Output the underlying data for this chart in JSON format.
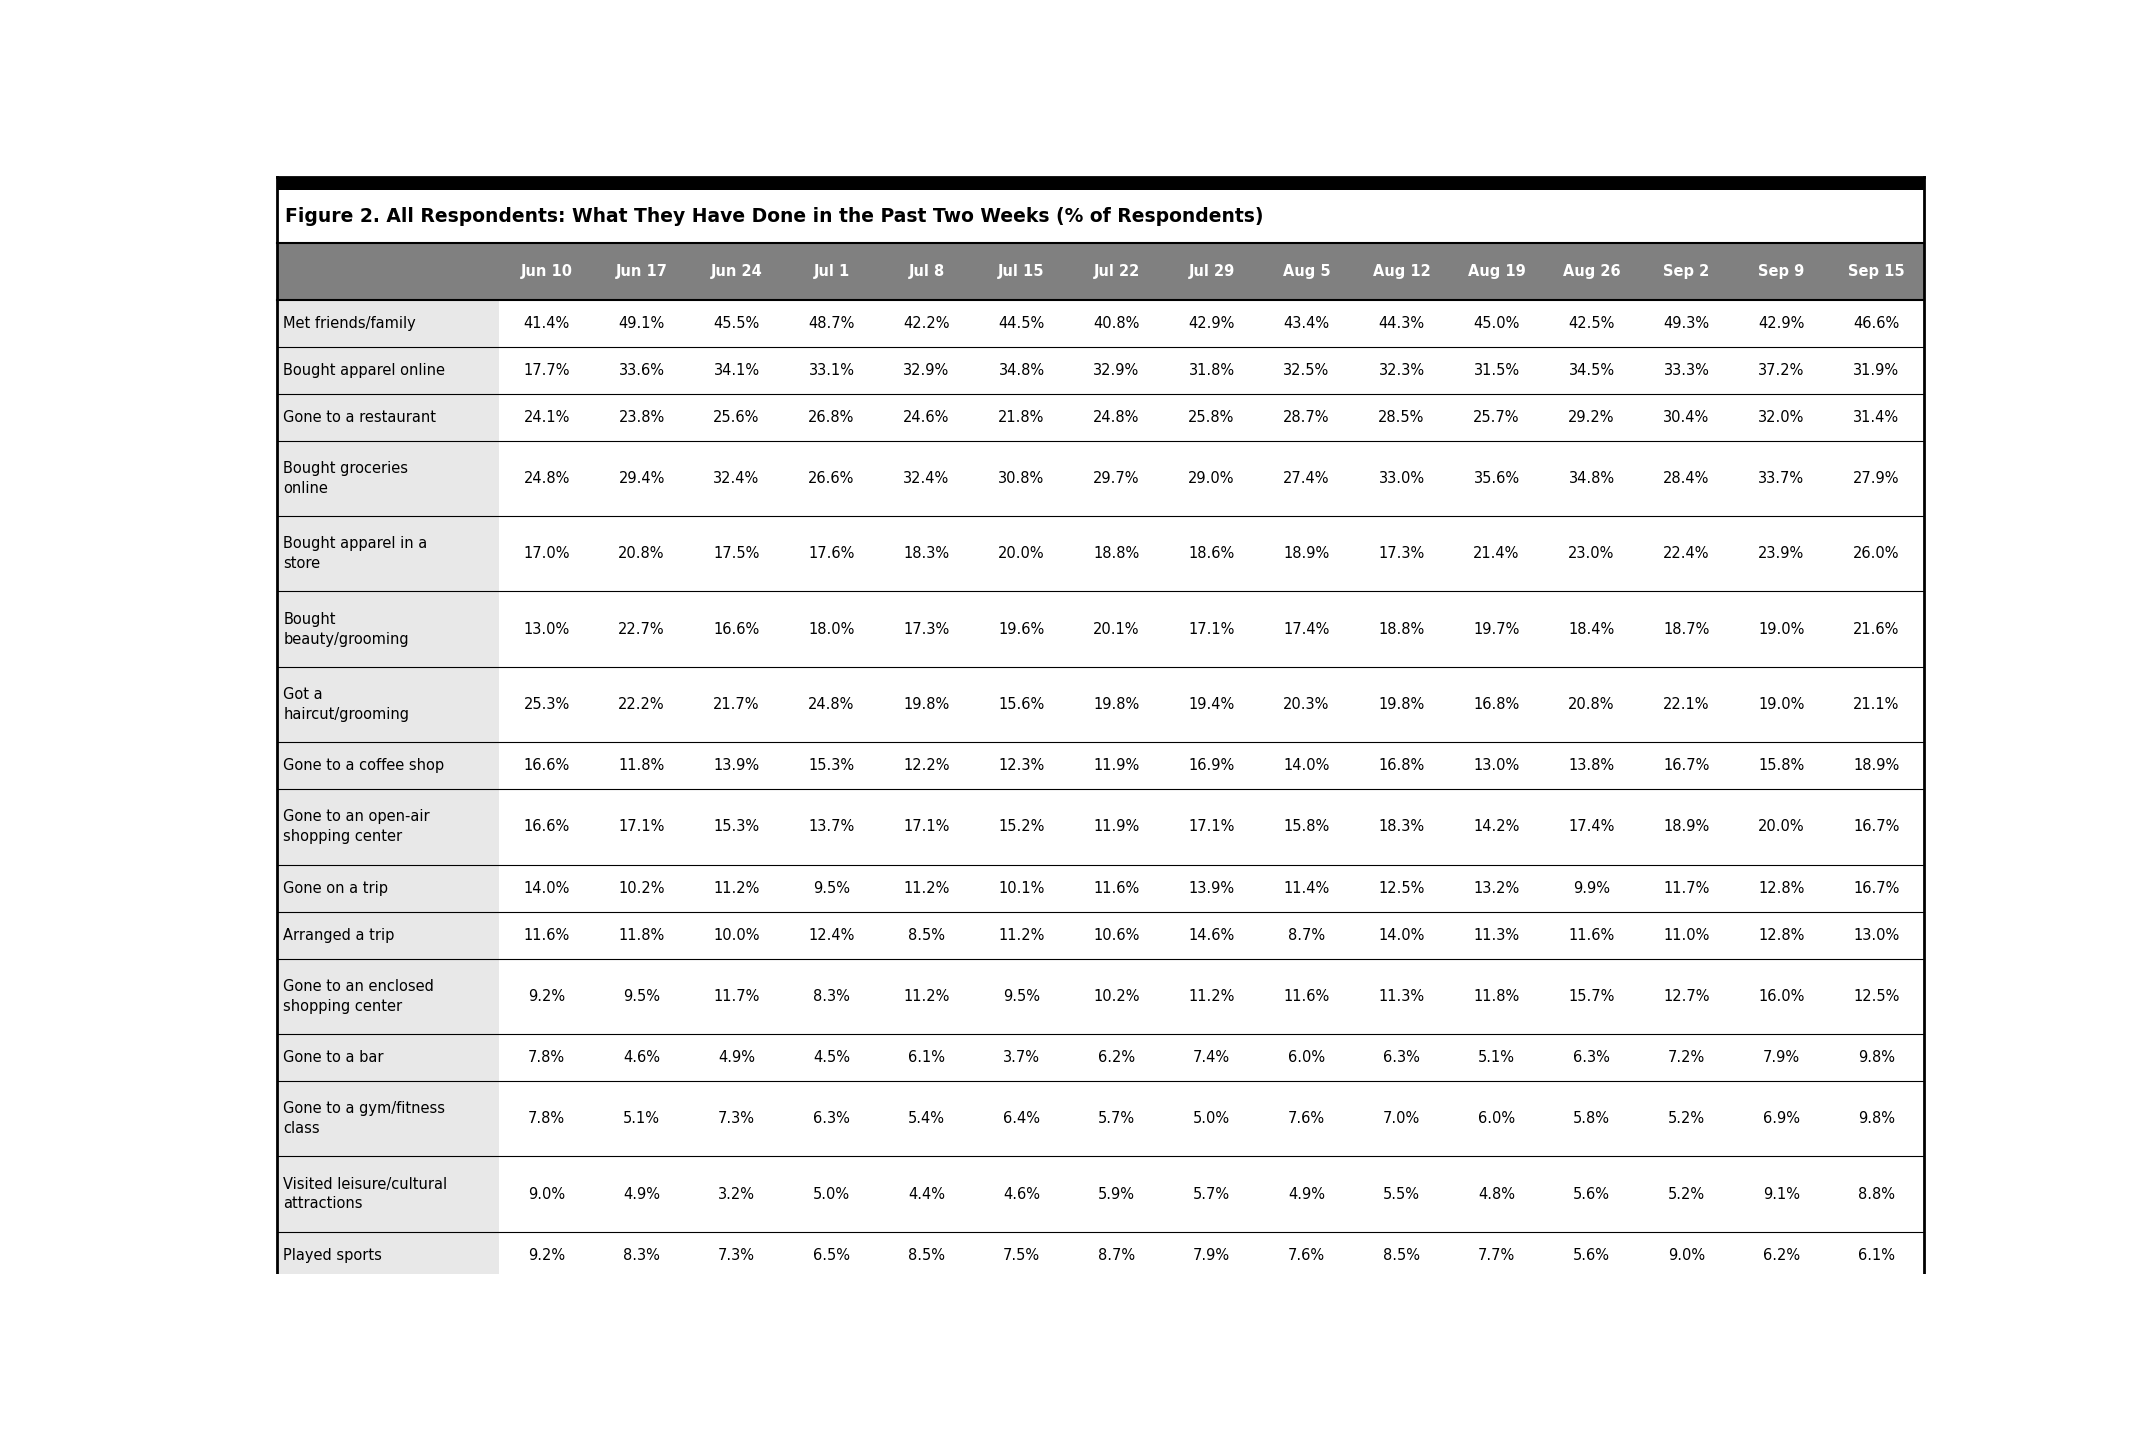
{
  "title": "Figure 2. All Respondents: What They Have Done in the Past Two Weeks (% of Respondents)",
  "columns": [
    "Jun 10",
    "Jun 17",
    "Jun 24",
    "Jul 1",
    "Jul 8",
    "Jul 15",
    "Jul 22",
    "Jul 29",
    "Aug 5",
    "Aug 12",
    "Aug 19",
    "Aug 26",
    "Sep 2",
    "Sep 9",
    "Sep 15"
  ],
  "rows": [
    [
      "Met friends/family",
      "41.4%",
      "49.1%",
      "45.5%",
      "48.7%",
      "42.2%",
      "44.5%",
      "40.8%",
      "42.9%",
      "43.4%",
      "44.3%",
      "45.0%",
      "42.5%",
      "49.3%",
      "42.9%",
      "46.6%"
    ],
    [
      "Bought apparel online",
      "17.7%",
      "33.6%",
      "34.1%",
      "33.1%",
      "32.9%",
      "34.8%",
      "32.9%",
      "31.8%",
      "32.5%",
      "32.3%",
      "31.5%",
      "34.5%",
      "33.3%",
      "37.2%",
      "31.9%"
    ],
    [
      "Gone to a restaurant",
      "24.1%",
      "23.8%",
      "25.6%",
      "26.8%",
      "24.6%",
      "21.8%",
      "24.8%",
      "25.8%",
      "28.7%",
      "28.5%",
      "25.7%",
      "29.2%",
      "30.4%",
      "32.0%",
      "31.4%"
    ],
    [
      "Bought groceries\nonline",
      "24.8%",
      "29.4%",
      "32.4%",
      "26.6%",
      "32.4%",
      "30.8%",
      "29.7%",
      "29.0%",
      "27.4%",
      "33.0%",
      "35.6%",
      "34.8%",
      "28.4%",
      "33.7%",
      "27.9%"
    ],
    [
      "Bought apparel in a\nstore",
      "17.0%",
      "20.8%",
      "17.5%",
      "17.6%",
      "18.3%",
      "20.0%",
      "18.8%",
      "18.6%",
      "18.9%",
      "17.3%",
      "21.4%",
      "23.0%",
      "22.4%",
      "23.9%",
      "26.0%"
    ],
    [
      "Bought\nbeauty/grooming",
      "13.0%",
      "22.7%",
      "16.6%",
      "18.0%",
      "17.3%",
      "19.6%",
      "20.1%",
      "17.1%",
      "17.4%",
      "18.8%",
      "19.7%",
      "18.4%",
      "18.7%",
      "19.0%",
      "21.6%"
    ],
    [
      "Got a\nhaircut/grooming",
      "25.3%",
      "22.2%",
      "21.7%",
      "24.8%",
      "19.8%",
      "15.6%",
      "19.8%",
      "19.4%",
      "20.3%",
      "19.8%",
      "16.8%",
      "20.8%",
      "22.1%",
      "19.0%",
      "21.1%"
    ],
    [
      "Gone to a coffee shop",
      "16.6%",
      "11.8%",
      "13.9%",
      "15.3%",
      "12.2%",
      "12.3%",
      "11.9%",
      "16.9%",
      "14.0%",
      "16.8%",
      "13.0%",
      "13.8%",
      "16.7%",
      "15.8%",
      "18.9%"
    ],
    [
      "Gone to an open-air\nshopping center",
      "16.6%",
      "17.1%",
      "15.3%",
      "13.7%",
      "17.1%",
      "15.2%",
      "11.9%",
      "17.1%",
      "15.8%",
      "18.3%",
      "14.2%",
      "17.4%",
      "18.9%",
      "20.0%",
      "16.7%"
    ],
    [
      "Gone on a trip",
      "14.0%",
      "10.2%",
      "11.2%",
      "9.5%",
      "11.2%",
      "10.1%",
      "11.6%",
      "13.9%",
      "11.4%",
      "12.5%",
      "13.2%",
      "9.9%",
      "11.7%",
      "12.8%",
      "16.7%"
    ],
    [
      "Arranged a trip",
      "11.6%",
      "11.8%",
      "10.0%",
      "12.4%",
      "8.5%",
      "11.2%",
      "10.6%",
      "14.6%",
      "8.7%",
      "14.0%",
      "11.3%",
      "11.6%",
      "11.0%",
      "12.8%",
      "13.0%"
    ],
    [
      "Gone to an enclosed\nshopping center",
      "9.2%",
      "9.5%",
      "11.7%",
      "8.3%",
      "11.2%",
      "9.5%",
      "10.2%",
      "11.2%",
      "11.6%",
      "11.3%",
      "11.8%",
      "15.7%",
      "12.7%",
      "16.0%",
      "12.5%"
    ],
    [
      "Gone to a bar",
      "7.8%",
      "4.6%",
      "4.9%",
      "4.5%",
      "6.1%",
      "3.7%",
      "6.2%",
      "7.4%",
      "6.0%",
      "6.3%",
      "5.1%",
      "6.3%",
      "7.2%",
      "7.9%",
      "9.8%"
    ],
    [
      "Gone to a gym/fitness\nclass",
      "7.8%",
      "5.1%",
      "7.3%",
      "6.3%",
      "5.4%",
      "6.4%",
      "5.7%",
      "5.0%",
      "7.6%",
      "7.0%",
      "6.0%",
      "5.8%",
      "5.2%",
      "6.9%",
      "9.8%"
    ],
    [
      "Visited leisure/cultural\nattractions",
      "9.0%",
      "4.9%",
      "3.2%",
      "5.0%",
      "4.4%",
      "4.6%",
      "5.9%",
      "5.7%",
      "4.9%",
      "5.5%",
      "4.8%",
      "5.6%",
      "5.2%",
      "9.1%",
      "8.8%"
    ],
    [
      "Played sports",
      "9.2%",
      "8.3%",
      "7.3%",
      "6.5%",
      "8.5%",
      "7.5%",
      "8.7%",
      "7.9%",
      "7.6%",
      "8.5%",
      "7.7%",
      "5.6%",
      "9.0%",
      "6.2%",
      "6.1%"
    ]
  ],
  "header_bg": "#808080",
  "header_text_color": "#ffffff",
  "label_bg": "#e8e8e8",
  "data_bg": "#ffffff",
  "border_color": "#000000",
  "top_bar_color": "#000000",
  "font_size_title": 13.5,
  "font_size_header": 10.5,
  "font_size_cell": 10.5,
  "font_size_label": 10.5
}
